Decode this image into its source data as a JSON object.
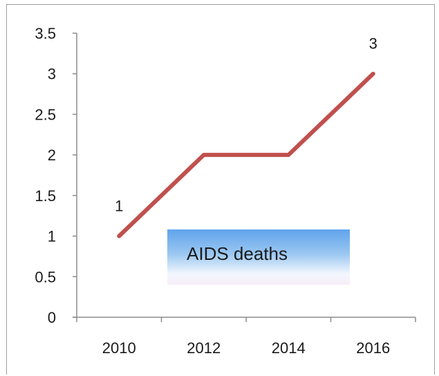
{
  "chart_data": {
    "type": "line",
    "categories": [
      "2010",
      "2012",
      "2014",
      "2016"
    ],
    "x": [
      2010,
      2012,
      2014,
      2016
    ],
    "series": [
      {
        "name": "AIDS deaths",
        "values": [
          1,
          2,
          2,
          3
        ],
        "color": "#c0504d"
      }
    ],
    "ylim": [
      0,
      3.5
    ],
    "yticks": [
      0,
      0.5,
      1,
      1.5,
      2,
      2.5,
      3,
      3.5
    ],
    "ytick_labels": [
      "0",
      "0.5",
      "1",
      "1.5",
      "2",
      "2.5",
      "3",
      "3.5"
    ],
    "data_labels": [
      {
        "index": 0,
        "text": "1"
      },
      {
        "index": 3,
        "text": "3"
      }
    ],
    "title": "",
    "xlabel": "",
    "ylabel": "",
    "grid": false,
    "legend_placement": "center-bottom",
    "legend_label": "AIDS deaths"
  }
}
